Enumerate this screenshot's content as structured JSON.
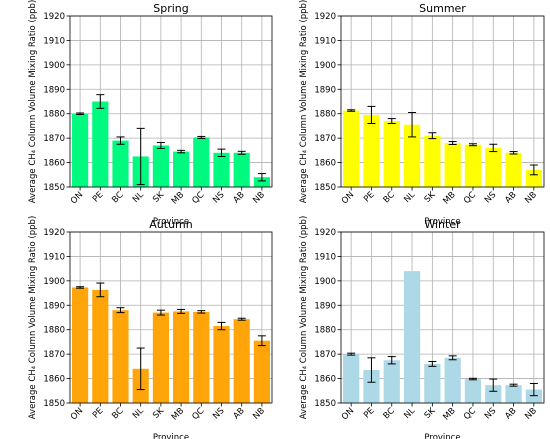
{
  "chart_data": [
    {
      "type": "bar",
      "title": "Spring",
      "xlabel": "Province",
      "ylabel": "Average CH₄ Column Volume Mixing Ratio (ppb)",
      "categories": [
        "ON",
        "PE",
        "BC",
        "NL",
        "SK",
        "MB",
        "QC",
        "NS",
        "AB",
        "NB"
      ],
      "values": [
        1880.0,
        1885.0,
        1869.0,
        1862.5,
        1867.0,
        1864.5,
        1870.3,
        1864.0,
        1864.0,
        1854.0
      ],
      "errors": [
        0.3,
        2.8,
        1.5,
        11.5,
        1.2,
        0.5,
        0.4,
        1.5,
        0.6,
        1.5
      ],
      "ylim": [
        1850,
        1920
      ],
      "yticks": [
        1850,
        1860,
        1870,
        1880,
        1890,
        1900,
        1910,
        1920
      ],
      "color": "#00fa7f",
      "grid": true
    },
    {
      "type": "bar",
      "title": "Summer",
      "xlabel": "Province",
      "ylabel": "Average CH₄ Column Volume Mixing Ratio (ppb)",
      "categories": [
        "ON",
        "PE",
        "BC",
        "NL",
        "SK",
        "MB",
        "QC",
        "NS",
        "AB",
        "NB"
      ],
      "values": [
        1881.3,
        1879.5,
        1877.0,
        1875.5,
        1871.0,
        1868.0,
        1867.3,
        1866.0,
        1864.0,
        1857.0
      ],
      "errors": [
        0.3,
        3.5,
        1.0,
        5.0,
        1.2,
        0.6,
        0.4,
        1.5,
        0.5,
        2.0
      ],
      "ylim": [
        1850,
        1920
      ],
      "yticks": [
        1850,
        1860,
        1870,
        1880,
        1890,
        1900,
        1910,
        1920
      ],
      "color": "#ffff00",
      "grid": true
    },
    {
      "type": "bar",
      "title": "Autumn",
      "xlabel": "Province",
      "ylabel": "Average CH₄ Column Volume Mixing Ratio (ppb)",
      "categories": [
        "ON",
        "PE",
        "BC",
        "NL",
        "SK",
        "MB",
        "QC",
        "NS",
        "AB",
        "NB"
      ],
      "values": [
        1897.3,
        1896.3,
        1888.0,
        1864.0,
        1887.0,
        1887.5,
        1887.3,
        1881.5,
        1884.3,
        1875.5
      ],
      "errors": [
        0.3,
        2.8,
        1.0,
        8.5,
        1.0,
        0.8,
        0.5,
        1.5,
        0.4,
        2.0
      ],
      "ylim": [
        1850,
        1920
      ],
      "yticks": [
        1850,
        1860,
        1870,
        1880,
        1890,
        1900,
        1910,
        1920
      ],
      "color": "#ffa50a",
      "grid": true
    },
    {
      "type": "bar",
      "title": "Winter",
      "xlabel": "Province",
      "ylabel": "Average CH₄ Column Volume Mixing Ratio (ppb)",
      "categories": [
        "ON",
        "PE",
        "BC",
        "NL",
        "SK",
        "MB",
        "QC",
        "NS",
        "AB",
        "NB"
      ],
      "values": [
        1870.0,
        1863.5,
        1867.5,
        1904.0,
        1866.0,
        1868.5,
        1859.8,
        1857.3,
        1857.3,
        1855.5
      ],
      "errors": [
        0.4,
        5.0,
        1.5,
        0.0,
        1.0,
        0.8,
        0.3,
        2.5,
        0.4,
        2.5
      ],
      "ylim": [
        1850,
        1920
      ],
      "yticks": [
        1850,
        1860,
        1870,
        1880,
        1890,
        1900,
        1910,
        1920
      ],
      "color": "#add8e6",
      "grid": true
    }
  ]
}
